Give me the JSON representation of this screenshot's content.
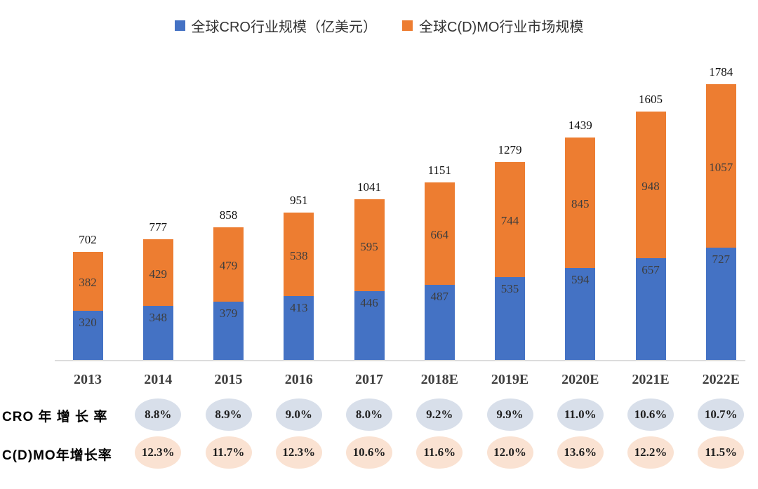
{
  "legend": [
    {
      "label": "全球CRO行业规模（亿美元）",
      "color": "#4472C4"
    },
    {
      "label": "全球C(D)MO行业市场规模",
      "color": "#ED7D31"
    }
  ],
  "chart_data": {
    "type": "bar",
    "stacked": true,
    "title": "",
    "xlabel": "",
    "ylabel": "",
    "grid": false,
    "legend_position": "top",
    "ylim": [
      0,
      1800
    ],
    "categories": [
      "2013",
      "2014",
      "2015",
      "2016",
      "2017",
      "2018E",
      "2019E",
      "2020E",
      "2021E",
      "2022E"
    ],
    "series": [
      {
        "name": "全球CRO行业规模（亿美元）",
        "color": "#4472C4",
        "values": [
          320,
          348,
          379,
          413,
          446,
          487,
          535,
          594,
          657,
          727
        ]
      },
      {
        "name": "全球C(D)MO行业市场规模",
        "color": "#ED7D31",
        "values": [
          382,
          429,
          479,
          538,
          595,
          664,
          744,
          845,
          948,
          1057
        ]
      }
    ],
    "totals": [
      702,
      777,
      858,
      951,
      1041,
      1151,
      1279,
      1439,
      1605,
      1784
    ]
  },
  "growth_rows": [
    {
      "label": "CRO 年 增 长 率",
      "bubble_color": "#D8DFEA",
      "start_category": "2014",
      "values": [
        "8.8%",
        "8.9%",
        "9.0%",
        "8.0%",
        "9.2%",
        "9.9%",
        "11.0%",
        "10.6%",
        "10.7%"
      ]
    },
    {
      "label": "C(D)MO年增长率",
      "bubble_color": "#FAE2D2",
      "start_category": "2014",
      "values": [
        "12.3%",
        "11.7%",
        "12.3%",
        "10.6%",
        "11.6%",
        "12.0%",
        "13.6%",
        "12.2%",
        "11.5%"
      ]
    }
  ]
}
